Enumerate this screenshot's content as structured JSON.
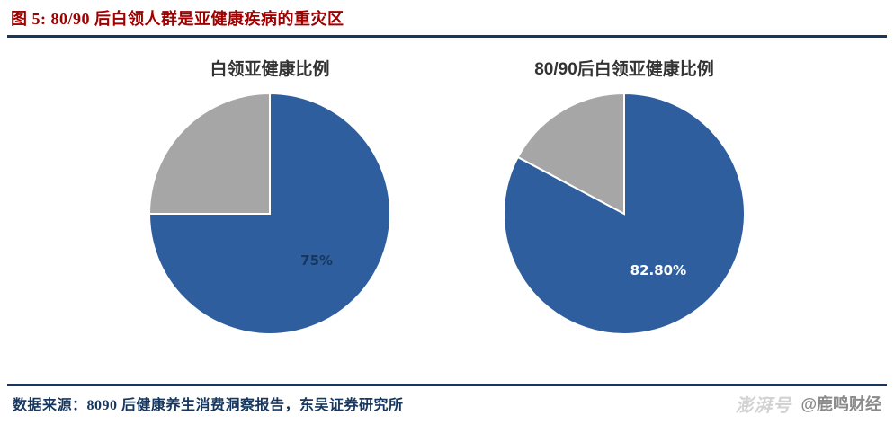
{
  "header": {
    "title": "图 5: 80/90 后白领人群是亚健康疾病的重灾区"
  },
  "footer": {
    "source": "数据来源：8090 后健康养生消费洞察报告，东吴证券研究所",
    "watermark_logo": "澎湃号",
    "watermark_handle": "@鹿鸣财经"
  },
  "colors": {
    "title_red": "#A00000",
    "rule_navy": "#17375E",
    "pie_blue": "#2E5E9E",
    "pie_gray": "#A6A6A6"
  },
  "chart_data": [
    {
      "type": "pie",
      "title": "白领亚健康比例",
      "start_angle_deg": 0,
      "direction": "clockwise",
      "slices": [
        {
          "value": 75,
          "label": "75%",
          "color": "#2E5E9E",
          "label_color": "#17375E"
        },
        {
          "value": 25,
          "label": "",
          "color": "#A6A6A6",
          "label_color": "#000000"
        }
      ]
    },
    {
      "type": "pie",
      "title": "80/90后白领亚健康比例",
      "start_angle_deg": 0,
      "direction": "clockwise",
      "slices": [
        {
          "value": 82.8,
          "label": "82.80%",
          "color": "#2E5E9E",
          "label_color": "#FFFFFF"
        },
        {
          "value": 17.2,
          "label": "",
          "color": "#A6A6A6",
          "label_color": "#000000"
        }
      ]
    }
  ]
}
